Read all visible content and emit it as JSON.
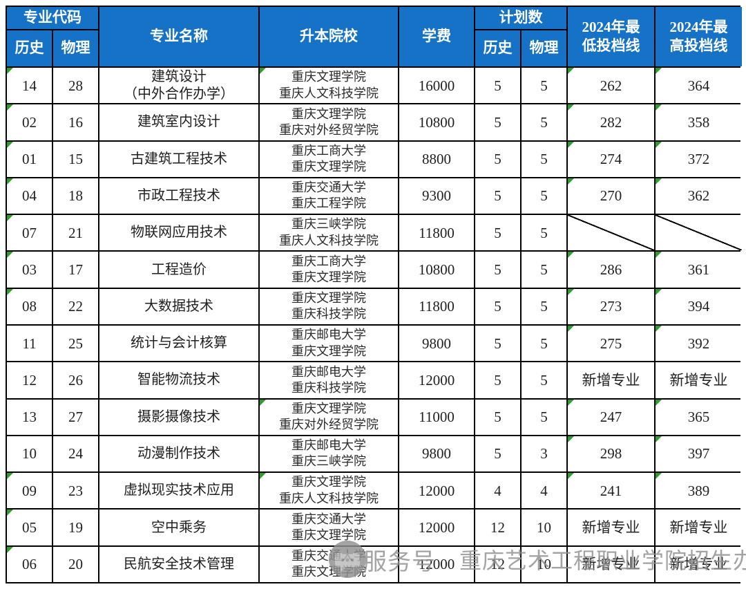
{
  "colors": {
    "header_bg": "#1572C6",
    "header_text": "#FFFFFF",
    "border": "#000000",
    "note_flag_green": "#2F9E2F",
    "watermark_gray": "#8F8F8F"
  },
  "table": {
    "header": {
      "col_major_code": "专业代码",
      "col_hist": "历史",
      "col_phys": "物理",
      "col_major_name": "专业名称",
      "col_school": "升本院校",
      "col_tuition": "学费",
      "col_plan": "计划数",
      "col_plan_hist": "历史",
      "col_plan_phys": "物理",
      "col_min_line": "2024年最\n低投档线",
      "col_max_line": "2024年最\n高投档线"
    },
    "rows": [
      {
        "hist_code": "14",
        "phys_code": "28",
        "major": "建筑设计\n（中外合作办学）",
        "schools": [
          "重庆文理学院",
          "重庆人文科技学院"
        ],
        "tuition": "16000",
        "plan_hist": "5",
        "plan_phys": "5",
        "min_line": "262",
        "max_line": "364",
        "diagonal": false,
        "marks": [
          "hist",
          "school",
          "min",
          "max"
        ]
      },
      {
        "hist_code": "02",
        "phys_code": "16",
        "major": "建筑室内设计",
        "schools": [
          "重庆文理学院",
          "重庆对外经贸学院"
        ],
        "tuition": "10800",
        "plan_hist": "5",
        "plan_phys": "5",
        "min_line": "282",
        "max_line": "358",
        "diagonal": false,
        "marks": [
          "hist",
          "min",
          "max"
        ]
      },
      {
        "hist_code": "01",
        "phys_code": "15",
        "major": "古建筑工程技术",
        "schools": [
          "重庆工商大学",
          "重庆文理学院"
        ],
        "tuition": "8800",
        "plan_hist": "5",
        "plan_phys": "5",
        "min_line": "274",
        "max_line": "372",
        "diagonal": false,
        "marks": [
          "hist",
          "min",
          "max"
        ]
      },
      {
        "hist_code": "04",
        "phys_code": "18",
        "major": "市政工程技术",
        "schools": [
          "重庆交通大学",
          "重庆工程学院"
        ],
        "tuition": "9300",
        "plan_hist": "5",
        "plan_phys": "5",
        "min_line": "270",
        "max_line": "362",
        "diagonal": false,
        "marks": [
          "hist",
          "min",
          "max"
        ]
      },
      {
        "hist_code": "07",
        "phys_code": "21",
        "major": "物联网应用技术",
        "schools": [
          "重庆三峡学院",
          "重庆人文科技学院"
        ],
        "tuition": "11800",
        "plan_hist": "5",
        "plan_phys": "5",
        "min_line": "",
        "max_line": "",
        "diagonal": true,
        "marks": [
          "hist"
        ]
      },
      {
        "hist_code": "03",
        "phys_code": "17",
        "major": "工程造价",
        "schools": [
          "重庆工商大学",
          "重庆文理学院"
        ],
        "tuition": "10800",
        "plan_hist": "5",
        "plan_phys": "5",
        "min_line": "286",
        "max_line": "361",
        "diagonal": false,
        "marks": [
          "hist",
          "min",
          "max"
        ]
      },
      {
        "hist_code": "08",
        "phys_code": "22",
        "major": "大数据技术",
        "schools": [
          "重庆文理学院",
          "重庆科技学院"
        ],
        "tuition": "11800",
        "plan_hist": "5",
        "plan_phys": "5",
        "min_line": "273",
        "max_line": "394",
        "diagonal": false,
        "marks": [
          "hist",
          "min",
          "max"
        ]
      },
      {
        "hist_code": "11",
        "phys_code": "25",
        "major": "统计与会计核算",
        "schools": [
          "重庆邮电大学",
          "重庆文理学院"
        ],
        "tuition": "9800",
        "plan_hist": "5",
        "plan_phys": "5",
        "min_line": "275",
        "max_line": "392",
        "diagonal": false,
        "marks": [
          "min",
          "max"
        ]
      },
      {
        "hist_code": "12",
        "phys_code": "26",
        "major": "智能物流技术",
        "schools": [
          "重庆邮电大学",
          "重庆科技学院"
        ],
        "tuition": "12000",
        "plan_hist": "5",
        "plan_phys": "5",
        "min_line": "新增专业",
        "max_line": "新增专业",
        "diagonal": false,
        "marks": []
      },
      {
        "hist_code": "13",
        "phys_code": "27",
        "major": "摄影摄像技术",
        "schools": [
          "重庆文理学院",
          "重庆对外经贸学院"
        ],
        "tuition": "11000",
        "plan_hist": "5",
        "plan_phys": "5",
        "min_line": "247",
        "max_line": "365",
        "diagonal": false,
        "marks": [
          "school",
          "min",
          "max"
        ]
      },
      {
        "hist_code": "10",
        "phys_code": "24",
        "major": "动漫制作技术",
        "schools": [
          "重庆邮电大学",
          "重庆三峡学院"
        ],
        "tuition": "9800",
        "plan_hist": "5",
        "plan_phys": "3",
        "min_line": "298",
        "max_line": "397",
        "diagonal": false,
        "marks": [
          "min",
          "max"
        ]
      },
      {
        "hist_code": "09",
        "phys_code": "23",
        "major": "虚拟现实技术应用",
        "schools": [
          "重庆文理学院",
          "重庆人文科技学院"
        ],
        "tuition": "12000",
        "plan_hist": "4",
        "plan_phys": "4",
        "min_line": "241",
        "max_line": "389",
        "diagonal": false,
        "marks": [
          "hist",
          "school",
          "min",
          "max"
        ]
      },
      {
        "hist_code": "05",
        "phys_code": "19",
        "major": "空中乘务",
        "schools": [
          "重庆交通大学",
          "重庆文理学院"
        ],
        "tuition": "12000",
        "plan_hist": "12",
        "plan_phys": "10",
        "min_line": "新增专业",
        "max_line": "新增专业",
        "diagonal": false,
        "marks": [
          "hist"
        ]
      },
      {
        "hist_code": "06",
        "phys_code": "20",
        "major": "民航安全技术管理",
        "schools": [
          "重庆交通大学",
          "重庆文理学院"
        ],
        "tuition": "12000",
        "plan_hist": "12",
        "plan_phys": "10",
        "min_line": "新增专业",
        "max_line": "新增专业",
        "diagonal": false,
        "marks": [
          "hist"
        ]
      }
    ]
  },
  "watermark": {
    "icon": "wechat-service-account-icon",
    "label": "服务号",
    "account_name": "重庆艺术工程职业学院招生办"
  }
}
